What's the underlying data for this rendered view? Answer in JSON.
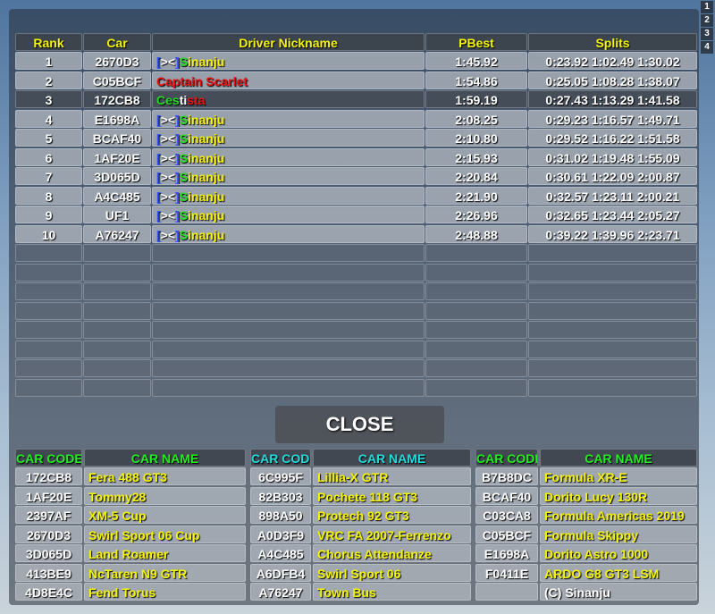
{
  "tabs": [
    "1",
    "2",
    "3",
    "4"
  ],
  "leaderboard": {
    "header_color": "#f5f500",
    "headers": [
      "Rank",
      "Car",
      "Driver Nickname",
      "PBest",
      "Splits"
    ],
    "rows": [
      {
        "rank": "1",
        "car": "2670D3",
        "nickname": [
          {
            "text": "[",
            "color": "#3355ff"
          },
          {
            "text": "><",
            "color": "#ffffff"
          },
          {
            "text": "]",
            "color": "#3355ff"
          },
          {
            "text": "S",
            "color": "#22dd22"
          },
          {
            "text": "inanju",
            "color": "#f5f500"
          }
        ],
        "pbest": "1:45.92",
        "splits": "0:23.92 1:02.49 1:30.02"
      },
      {
        "rank": "2",
        "car": "C05BCF",
        "nickname": [
          {
            "text": "Captain Scarlet",
            "color": "#ee1111"
          }
        ],
        "pbest": "1:54.86",
        "splits": "0:25.05 1:08.28 1:38.07"
      },
      {
        "rank": "3",
        "car": "172CB8",
        "selected": true,
        "nickname": [
          {
            "text": "Ces",
            "color": "#22dd22"
          },
          {
            "text": "ti",
            "color": "#ffffff"
          },
          {
            "text": "sta",
            "color": "#ee1111"
          }
        ],
        "pbest": "1:59.19",
        "splits": "0:27.43 1:13.29 1:41.58"
      },
      {
        "rank": "4",
        "car": "E1698A",
        "nickname": [
          {
            "text": "[",
            "color": "#3355ff"
          },
          {
            "text": "><",
            "color": "#ffffff"
          },
          {
            "text": "]",
            "color": "#3355ff"
          },
          {
            "text": "S",
            "color": "#22dd22"
          },
          {
            "text": "inanju",
            "color": "#f5f500"
          }
        ],
        "pbest": "2:08.25",
        "splits": "0:29.23 1:16.57 1:49.71"
      },
      {
        "rank": "5",
        "car": "BCAF40",
        "nickname": [
          {
            "text": "[",
            "color": "#3355ff"
          },
          {
            "text": "><",
            "color": "#ffffff"
          },
          {
            "text": "]",
            "color": "#3355ff"
          },
          {
            "text": "S",
            "color": "#22dd22"
          },
          {
            "text": "inanju",
            "color": "#f5f500"
          }
        ],
        "pbest": "2:10.80",
        "splits": "0:29.52 1:16.22 1:51.58"
      },
      {
        "rank": "6",
        "car": "1AF20E",
        "nickname": [
          {
            "text": "[",
            "color": "#3355ff"
          },
          {
            "text": "><",
            "color": "#ffffff"
          },
          {
            "text": "]",
            "color": "#3355ff"
          },
          {
            "text": "S",
            "color": "#22dd22"
          },
          {
            "text": "inanju",
            "color": "#f5f500"
          }
        ],
        "pbest": "2:15.93",
        "splits": "0:31.02 1:19.48 1:55.09"
      },
      {
        "rank": "7",
        "car": "3D065D",
        "nickname": [
          {
            "text": "[",
            "color": "#3355ff"
          },
          {
            "text": "><",
            "color": "#ffffff"
          },
          {
            "text": "]",
            "color": "#3355ff"
          },
          {
            "text": "S",
            "color": "#22dd22"
          },
          {
            "text": "inanju",
            "color": "#f5f500"
          }
        ],
        "pbest": "2:20.84",
        "splits": "0:30.61 1:22.09 2:00.87"
      },
      {
        "rank": "8",
        "car": "A4C485",
        "nickname": [
          {
            "text": "[",
            "color": "#3355ff"
          },
          {
            "text": "><",
            "color": "#ffffff"
          },
          {
            "text": "]",
            "color": "#3355ff"
          },
          {
            "text": "S",
            "color": "#22dd22"
          },
          {
            "text": "inanju",
            "color": "#f5f500"
          }
        ],
        "pbest": "2:21.90",
        "splits": "0:32.57 1:23.11 2:00.21"
      },
      {
        "rank": "9",
        "car": "UF1",
        "nickname": [
          {
            "text": "[",
            "color": "#3355ff"
          },
          {
            "text": "><",
            "color": "#ffffff"
          },
          {
            "text": "]",
            "color": "#3355ff"
          },
          {
            "text": "S",
            "color": "#22dd22"
          },
          {
            "text": "inanju",
            "color": "#f5f500"
          }
        ],
        "pbest": "2:26.96",
        "splits": "0:32.65 1:23.44 2:05.27"
      },
      {
        "rank": "10",
        "car": "A76247",
        "nickname": [
          {
            "text": "[",
            "color": "#3355ff"
          },
          {
            "text": "><",
            "color": "#ffffff"
          },
          {
            "text": "]",
            "color": "#3355ff"
          },
          {
            "text": "S",
            "color": "#22dd22"
          },
          {
            "text": "inanju",
            "color": "#f5f500"
          }
        ],
        "pbest": "2:48.88",
        "splits": "0:39.22 1:39.96 2:23.71"
      }
    ]
  },
  "close_button": "CLOSE",
  "cars": {
    "name_color": "#f5f500",
    "groups": [
      {
        "header_color": "#22ee22",
        "headers": [
          "CAR CODE",
          "CAR NAME"
        ],
        "rows": [
          {
            "code": "172CB8",
            "name": "Fera 488 GT3"
          },
          {
            "code": "1AF20E",
            "name": "Tommy28"
          },
          {
            "code": "2397AF",
            "name": "XM-5 Cup"
          },
          {
            "code": "2670D3",
            "name": "Swirl Sport 06 Cup"
          },
          {
            "code": "3D065D",
            "name": "Land Roamer"
          },
          {
            "code": "413BE9",
            "name": "NcTaren N9 GTR"
          },
          {
            "code": "4D8E4C",
            "name": "Fend Torus"
          }
        ]
      },
      {
        "header_color": "#22dddd",
        "headers": [
          "CAR CODE",
          "CAR NAME"
        ],
        "rows": [
          {
            "code": "6C995F",
            "name": "Lillia-X GTR"
          },
          {
            "code": "82B303",
            "name": "Pochete 118 GT3"
          },
          {
            "code": "898A50",
            "name": "Protech 92 GT3"
          },
          {
            "code": "A0D3F9",
            "name": "VRC FA 2007-Ferrenzo"
          },
          {
            "code": "A4C485",
            "name": "Chorus Attendanze"
          },
          {
            "code": "A6DFB4",
            "name": "Swirl Sport 06"
          },
          {
            "code": "A76247",
            "name": "Town Bus"
          }
        ]
      },
      {
        "header_color": "#22ee22",
        "headers": [
          "CAR CODE",
          "CAR NAME"
        ],
        "rows": [
          {
            "code": "B7B8DC",
            "name": "Formula XR-E"
          },
          {
            "code": "BCAF40",
            "name": "Dorito Lucy 130R"
          },
          {
            "code": "C03CA8",
            "name": "Formula Americas 2019"
          },
          {
            "code": "C05BCF",
            "name": "Formula Skippy"
          },
          {
            "code": "E1698A",
            "name": "Dorito Astro 1000"
          },
          {
            "code": "F0411E",
            "name": "ARDO G8 GT3 LSM"
          },
          {
            "code": null,
            "name": "(C) Sinanju",
            "name_color": "#ffffff"
          }
        ]
      }
    ]
  }
}
